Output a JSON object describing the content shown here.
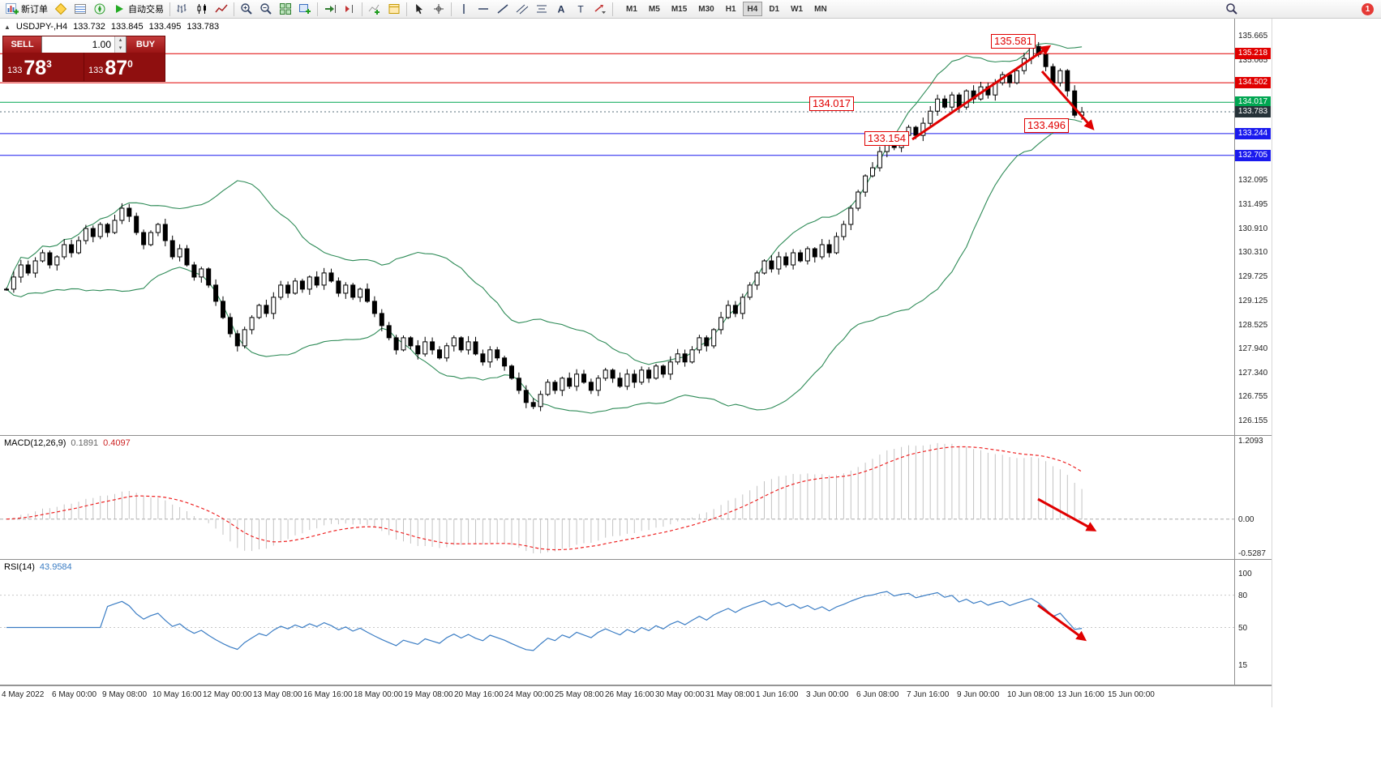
{
  "toolbar": {
    "new_order_label": "新订单",
    "auto_trading_label": "自动交易",
    "timeframes": [
      "M1",
      "M5",
      "M15",
      "M30",
      "H1",
      "H4",
      "D1",
      "W1",
      "MN"
    ],
    "active_timeframe": "H4",
    "notification_count": "1"
  },
  "chart": {
    "header": "USDJPY-,H4",
    "open": "133.732",
    "high": "133.845",
    "low": "133.495",
    "close": "133.783"
  },
  "trade_panel": {
    "sell_label": "SELL",
    "buy_label": "BUY",
    "volume": "1.00",
    "sell_price": {
      "small": "133",
      "big": "78",
      "sup": "3"
    },
    "buy_price": {
      "small": "133",
      "big": "87",
      "sup": "0"
    }
  },
  "colors": {
    "annotation_red": "#e00000",
    "level_red": "#e00000",
    "level_green": "#00a651",
    "level_blue": "#1a1aee",
    "current_price_line": "#546e7a",
    "current_price_badge": "#263238",
    "bollinger": "#2e8b57",
    "candle": "#000000",
    "macd_histogram": "#c3c3c3",
    "macd_signal": "#ee2222",
    "rsi_line": "#3b7dc4"
  },
  "chart_data": {
    "type": "candlestick",
    "symbol": "USDJPY-",
    "timeframe": "H4",
    "ylim": [
      126.155,
      135.665
    ],
    "closes": [
      129.4,
      129.7,
      130.0,
      129.8,
      130.1,
      130.3,
      130.0,
      130.2,
      130.5,
      130.3,
      130.6,
      130.9,
      130.7,
      131.0,
      130.8,
      131.1,
      131.4,
      131.2,
      130.8,
      130.5,
      130.8,
      131.0,
      130.6,
      130.2,
      130.4,
      130.0,
      129.7,
      129.9,
      129.5,
      129.1,
      128.7,
      128.3,
      128.0,
      128.4,
      128.7,
      129.0,
      128.8,
      129.2,
      129.5,
      129.3,
      129.6,
      129.4,
      129.7,
      129.5,
      129.8,
      129.6,
      129.3,
      129.5,
      129.2,
      129.4,
      129.1,
      128.8,
      128.5,
      128.2,
      127.9,
      128.2,
      128.0,
      127.8,
      128.1,
      127.9,
      127.7,
      128.0,
      128.2,
      127.9,
      128.1,
      127.8,
      127.6,
      127.9,
      127.7,
      127.5,
      127.2,
      126.9,
      126.6,
      126.5,
      126.8,
      127.1,
      126.9,
      127.2,
      127.0,
      127.3,
      127.1,
      126.9,
      127.2,
      127.4,
      127.2,
      127.0,
      127.3,
      127.1,
      127.4,
      127.2,
      127.5,
      127.3,
      127.6,
      127.8,
      127.6,
      127.9,
      128.2,
      128.0,
      128.4,
      128.7,
      129.0,
      128.8,
      129.2,
      129.5,
      129.8,
      130.1,
      129.9,
      130.2,
      130.0,
      130.3,
      130.1,
      130.4,
      130.2,
      130.5,
      130.3,
      130.7,
      131.0,
      131.4,
      131.8,
      132.2,
      132.4,
      132.8,
      133.1,
      132.9,
      133.2,
      133.4,
      133.2,
      133.5,
      133.8,
      134.1,
      133.9,
      134.2,
      133.9,
      134.3,
      134.1,
      134.4,
      134.2,
      134.5,
      134.7,
      134.5,
      134.8,
      135.1,
      135.4,
      135.2,
      134.9,
      134.5,
      134.8,
      134.3,
      133.7,
      133.78
    ],
    "y_ticks": [
      "135.665",
      "135.065",
      "132.095",
      "131.495",
      "130.910",
      "130.310",
      "129.725",
      "129.125",
      "128.525",
      "127.940",
      "127.340",
      "126.755",
      "126.155"
    ],
    "level_badges": [
      {
        "text": "135.218",
        "price": 135.218,
        "color": "#e00000",
        "line": "solid"
      },
      {
        "text": "134.502",
        "price": 134.502,
        "color": "#e00000",
        "line": "solid"
      },
      {
        "text": "134.017",
        "price": 134.017,
        "color": "#00a651",
        "line": "solid"
      },
      {
        "text": "133.783",
        "price": 133.783,
        "color": "#263238",
        "line": "dotted"
      },
      {
        "text": "133.244",
        "price": 133.244,
        "color": "#1a1aee",
        "line": "solid"
      },
      {
        "text": "132.705",
        "price": 132.705,
        "color": "#1a1aee",
        "line": "solid"
      }
    ],
    "annotations": [
      {
        "text": "135.581"
      },
      {
        "text": "134.017"
      },
      {
        "text": "133.154"
      },
      {
        "text": "133.496"
      }
    ],
    "x_labels": [
      "4 May 2022",
      "6 May 00:00",
      "9 May 08:00",
      "10 May 16:00",
      "12 May 00:00",
      "13 May 08:00",
      "16 May 16:00",
      "18 May 00:00",
      "19 May 08:00",
      "20 May 16:00",
      "24 May 00:00",
      "25 May 08:00",
      "26 May 16:00",
      "30 May 00:00",
      "31 May 08:00",
      "1 Jun 16:00",
      "3 Jun 00:00",
      "6 Jun 08:00",
      "7 Jun 16:00",
      "9 Jun 00:00",
      "10 Jun 08:00",
      "13 Jun 16:00",
      "15 Jun 00:00"
    ],
    "indicators": {
      "bollinger": {
        "period": 20,
        "deviation": 2
      },
      "macd": {
        "name": "MACD(12,26,9)",
        "fast": 12,
        "slow": 26,
        "signal": 9,
        "value_main": "0.1891",
        "value_signal": "0.4097",
        "scale": [
          "1.2093",
          "0.00",
          "-0.5287"
        ],
        "scale_max": 1.2093,
        "scale_min": -0.5287
      },
      "rsi": {
        "name": "RSI(14)",
        "period": 14,
        "value": "43.9584",
        "scale": [
          "100",
          "80",
          "50",
          "15"
        ],
        "levels": [
          80,
          50
        ]
      }
    }
  }
}
